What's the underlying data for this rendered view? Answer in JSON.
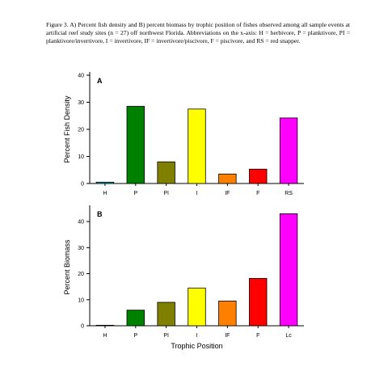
{
  "caption": "Figure 3.  A) Percent fish density and B) percent biomass by trophic position of fishes observed among all sample events at artificial reef study sites (n = 27) off northwest Florida. Abbreviations on the x-axis: H = herbivore, P = planktivore, PI = planktivore/invertivore, I = invertivore, IF = invertivore/piscivore, F = piscivore, and RS = red snapper.",
  "chart_data": [
    {
      "type": "bar",
      "panel_label": "A",
      "ylabel": "Percent Fish Density",
      "xlabel": "",
      "ylim": [
        0,
        40
      ],
      "yticks": [
        0,
        10,
        20,
        30,
        40
      ],
      "categories": [
        "H",
        "P",
        "PI",
        "I",
        "IF",
        "F",
        "RS"
      ],
      "values": [
        0.5,
        28.5,
        8,
        27.5,
        3.5,
        5.3,
        24.2
      ],
      "colors": [
        "#00b8b8",
        "#008000",
        "#808000",
        "#ffff00",
        "#ff8000",
        "#ff0000",
        "#ff00ff"
      ]
    },
    {
      "type": "bar",
      "panel_label": "B",
      "ylabel": "Percent Biomass",
      "xlabel": "Trophic Position",
      "ylim": [
        0,
        45
      ],
      "yticks": [
        0,
        10,
        20,
        30,
        40
      ],
      "categories": [
        "H",
        "P",
        "PI",
        "I",
        "IF",
        "F",
        "Lc"
      ],
      "values": [
        0.2,
        6,
        9,
        14.5,
        9.5,
        18.2,
        43
      ],
      "colors": [
        "#00b8b8",
        "#008000",
        "#808000",
        "#ffff00",
        "#ff8000",
        "#ff0000",
        "#ff00ff"
      ]
    }
  ]
}
